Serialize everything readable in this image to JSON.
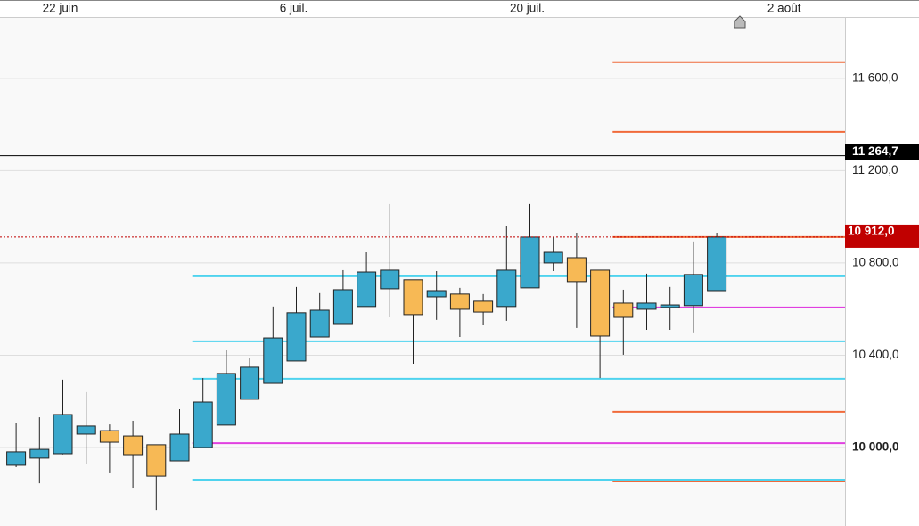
{
  "chart_data": {
    "type": "candlestick",
    "categories": [
      null,
      null,
      "22 juin",
      null,
      null,
      null,
      null,
      null,
      null,
      null,
      null,
      null,
      "6 juil.",
      null,
      null,
      null,
      null,
      null,
      null,
      null,
      null,
      null,
      "20 juil.",
      null,
      null,
      null,
      null,
      null,
      null,
      null,
      null,
      null,
      null,
      "2 août",
      null,
      null
    ],
    "open": [
      9923,
      9954,
      9973,
      10058,
      10073,
      10050,
      10012,
      9942,
      10000,
      10097,
      10209,
      10278,
      10375,
      10479,
      10537,
      10611,
      10688,
      10727,
      10653,
      10665,
      10634,
      10611,
      10692,
      10800,
      10823,
      10769,
      10626,
      10599,
      10607,
      10615,
      10680,
      null,
      null,
      null,
      null,
      null
    ],
    "high": [
      10108,
      10131,
      10294,
      10240,
      10100,
      10116,
      10012,
      10166,
      10301,
      10421,
      10387,
      10611,
      10696,
      10669,
      10769,
      10846,
      11055,
      10727,
      10765,
      10692,
      10665,
      10959,
      11055,
      10912,
      10931,
      10769,
      10684,
      10754,
      10696,
      10893,
      10931,
      null,
      null,
      null,
      null,
      null
    ],
    "low": [
      9915,
      9845,
      9970,
      9927,
      9892,
      9826,
      9729,
      9942,
      10000,
      10097,
      10209,
      10278,
      10375,
      10479,
      10537,
      10611,
      10564,
      10363,
      10553,
      10479,
      10530,
      10549,
      10692,
      10765,
      10518,
      10301,
      10402,
      10510,
      10510,
      10499,
      10680,
      null,
      null,
      null,
      null,
      null
    ],
    "close": [
      9981,
      9992,
      10143,
      10093,
      10023,
      9969,
      9876,
      10058,
      10197,
      10321,
      10348,
      10475,
      10584,
      10595,
      10684,
      10761,
      10769,
      10576,
      10680,
      10599,
      10587,
      10769,
      10912,
      10846,
      10719,
      10483,
      10564,
      10626,
      10618,
      10750,
      10912,
      null,
      null,
      null,
      null,
      null
    ],
    "up_color": "#3aa8cc",
    "down_color": "#f7b955",
    "ylim": [
      9660,
      11866
    ],
    "yticks": [
      {
        "value": 10000,
        "label": "10 000,0"
      },
      {
        "value": 10400,
        "label": "10 400,0"
      },
      {
        "value": 10800,
        "label": "10 800,0"
      },
      {
        "value": 11200,
        "label": "11 200,0"
      },
      {
        "value": 11600,
        "label": "11 600,0"
      }
    ],
    "grid": true,
    "levels": [
      {
        "value": 11670,
        "color": "#f06a3a",
        "from": 26
      },
      {
        "value": 11368,
        "color": "#f06a3a",
        "from": 26
      },
      {
        "value": 10912,
        "color": "#f06a3a",
        "from": 26
      },
      {
        "value": 10155,
        "color": "#f06a3a",
        "from": 26
      },
      {
        "value": 9853,
        "color": "#f06a3a",
        "from": 26
      },
      {
        "value": 10742,
        "color": "#4fd3ee",
        "from": 8
      },
      {
        "value": 10460,
        "color": "#4fd3ee",
        "from": 8
      },
      {
        "value": 10298,
        "color": "#4fd3ee",
        "from": 8
      },
      {
        "value": 9861,
        "color": "#4fd3ee",
        "from": 8
      },
      {
        "value": 10607,
        "color": "#e040e0",
        "from": 26
      },
      {
        "value": 10019,
        "color": "#e040e0",
        "from": 8
      }
    ],
    "markers": [
      {
        "value": 11264.7,
        "label": "11 264,7",
        "color": "#000000"
      },
      {
        "value": 10912,
        "label": "10 912,0",
        "color": "#c00000"
      }
    ]
  }
}
